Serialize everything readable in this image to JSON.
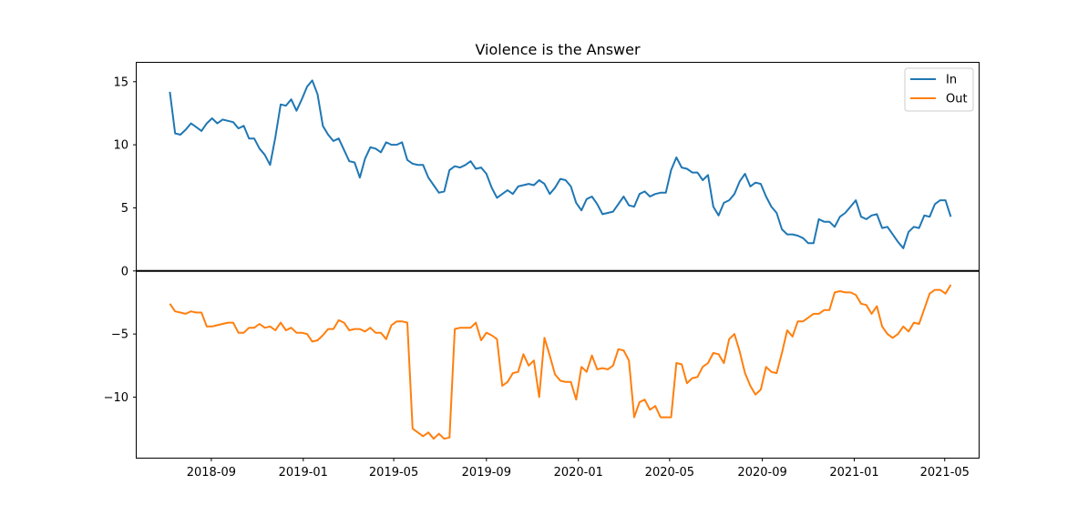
{
  "chart_data": {
    "type": "line",
    "title": "Violence is the Answer",
    "xlabel": "",
    "ylabel": "",
    "x_start": "2018-07-08",
    "x_interval_days": 7,
    "xlim": [
      "2018-05-25",
      "2021-06-15"
    ],
    "ylim": [
      -14.8,
      16.5
    ],
    "x_ticks": [
      "2018-09",
      "2019-01",
      "2019-05",
      "2019-09",
      "2020-01",
      "2020-05",
      "2020-09",
      "2021-01",
      "2021-05"
    ],
    "y_ticks": [
      15,
      10,
      5,
      0,
      -5,
      -10
    ],
    "zero_line": true,
    "grid": false,
    "legend_position": "top-right",
    "series": [
      {
        "name": "In",
        "color": "#1f77b4",
        "values": [
          14.2,
          10.9,
          10.8,
          11.2,
          11.7,
          11.4,
          11.1,
          11.7,
          12.1,
          11.7,
          12.0,
          11.9,
          11.8,
          11.3,
          11.5,
          10.5,
          10.5,
          9.7,
          9.2,
          8.4,
          10.6,
          13.2,
          13.1,
          13.6,
          12.7,
          13.6,
          14.6,
          15.1,
          14.0,
          11.5,
          10.8,
          10.3,
          10.5,
          9.6,
          8.7,
          8.6,
          7.4,
          8.9,
          9.8,
          9.7,
          9.4,
          10.2,
          10.0,
          10.0,
          10.2,
          8.8,
          8.5,
          8.4,
          8.4,
          7.4,
          6.8,
          6.2,
          6.3,
          8.0,
          8.3,
          8.2,
          8.4,
          8.7,
          8.1,
          8.2,
          7.7,
          6.6,
          5.8,
          6.1,
          6.4,
          6.1,
          6.7,
          6.8,
          6.9,
          6.8,
          7.2,
          6.9,
          6.1,
          6.6,
          7.3,
          7.2,
          6.7,
          5.4,
          4.8,
          5.7,
          5.9,
          5.3,
          4.5,
          4.6,
          4.7,
          5.3,
          5.9,
          5.2,
          5.1,
          6.1,
          6.3,
          5.9,
          6.1,
          6.2,
          6.2,
          8.0,
          9.0,
          8.2,
          8.1,
          7.8,
          7.8,
          7.2,
          7.6,
          5.1,
          4.4,
          5.4,
          5.6,
          6.1,
          7.1,
          7.7,
          6.7,
          7.0,
          6.9,
          5.9,
          5.1,
          4.6,
          3.3,
          2.9,
          2.9,
          2.8,
          2.6,
          2.2,
          2.2,
          4.1,
          3.9,
          3.9,
          3.5,
          4.3,
          4.6,
          5.1,
          5.6,
          4.3,
          4.1,
          4.4,
          4.5,
          3.4,
          3.5,
          2.9,
          2.3,
          1.8,
          3.1,
          3.5,
          3.4,
          4.4,
          4.3,
          5.3,
          5.6,
          5.6,
          4.3
        ]
      },
      {
        "name": "Out",
        "color": "#ff7f0e",
        "values": [
          -2.6,
          -3.2,
          -3.3,
          -3.4,
          -3.2,
          -3.3,
          -3.3,
          -4.4,
          -4.4,
          -4.3,
          -4.2,
          -4.1,
          -4.1,
          -4.9,
          -4.9,
          -4.5,
          -4.5,
          -4.2,
          -4.5,
          -4.4,
          -4.7,
          -4.1,
          -4.7,
          -4.5,
          -4.9,
          -4.9,
          -5.0,
          -5.6,
          -5.5,
          -5.1,
          -4.6,
          -4.6,
          -3.9,
          -4.1,
          -4.7,
          -4.6,
          -4.6,
          -4.8,
          -4.5,
          -4.9,
          -4.9,
          -5.4,
          -4.3,
          -4.0,
          -4.0,
          -4.1,
          -12.5,
          -12.8,
          -13.1,
          -12.8,
          -13.3,
          -12.9,
          -13.3,
          -13.2,
          -4.6,
          -4.5,
          -4.5,
          -4.5,
          -4.1,
          -5.5,
          -4.9,
          -5.1,
          -5.4,
          -9.1,
          -8.8,
          -8.1,
          -8.0,
          -6.6,
          -7.5,
          -7.1,
          -10.0,
          -5.3,
          -6.7,
          -8.2,
          -8.7,
          -8.8,
          -8.8,
          -10.2,
          -7.6,
          -8.0,
          -6.7,
          -7.8,
          -7.7,
          -7.8,
          -7.5,
          -6.2,
          -6.3,
          -7.1,
          -11.6,
          -10.4,
          -10.2,
          -11.0,
          -10.7,
          -11.6,
          -11.6,
          -11.6,
          -7.3,
          -7.4,
          -8.9,
          -8.5,
          -8.4,
          -7.6,
          -7.3,
          -6.5,
          -6.6,
          -7.3,
          -5.4,
          -5.0,
          -6.4,
          -8.1,
          -9.1,
          -9.8,
          -9.4,
          -7.6,
          -8.0,
          -8.1,
          -6.5,
          -4.7,
          -5.2,
          -4.0,
          -4.0,
          -3.7,
          -3.4,
          -3.4,
          -3.1,
          -3.1,
          -1.7,
          -1.6,
          -1.7,
          -1.7,
          -1.9,
          -2.6,
          -2.7,
          -3.4,
          -2.8,
          -4.4,
          -5.0,
          -5.3,
          -5.0,
          -4.4,
          -4.8,
          -4.1,
          -4.2,
          -3.0,
          -1.8,
          -1.5,
          -1.5,
          -1.8,
          -1.1
        ]
      }
    ]
  }
}
